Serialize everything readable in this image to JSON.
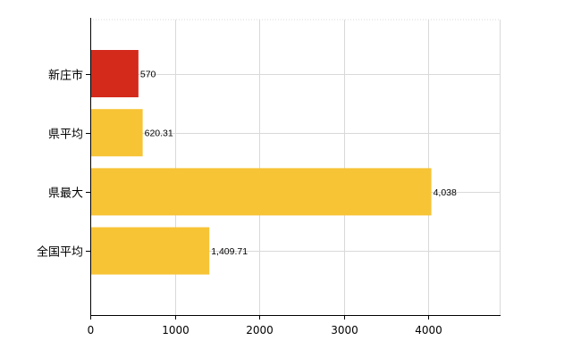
{
  "chart_data": {
    "type": "bar",
    "orientation": "horizontal",
    "categories": [
      "新庄市",
      "県平均",
      "県最大",
      "全国平均"
    ],
    "values": [
      570,
      620.31,
      4038,
      1409.71
    ],
    "value_labels": [
      "570",
      "620.31",
      "4,038",
      "1,409.71"
    ],
    "bar_colors": [
      "#d32a1c",
      "#f7c436",
      "#f7c436",
      "#f7c436"
    ],
    "xlim": [
      0,
      4850
    ],
    "xticks": [
      0,
      1000,
      2000,
      3000,
      4000
    ],
    "xtick_labels": [
      "0",
      "1000",
      "2000",
      "3000",
      "4000"
    ],
    "grid": true,
    "legend": "none",
    "title": "",
    "xlabel": "",
    "ylabel": ""
  }
}
